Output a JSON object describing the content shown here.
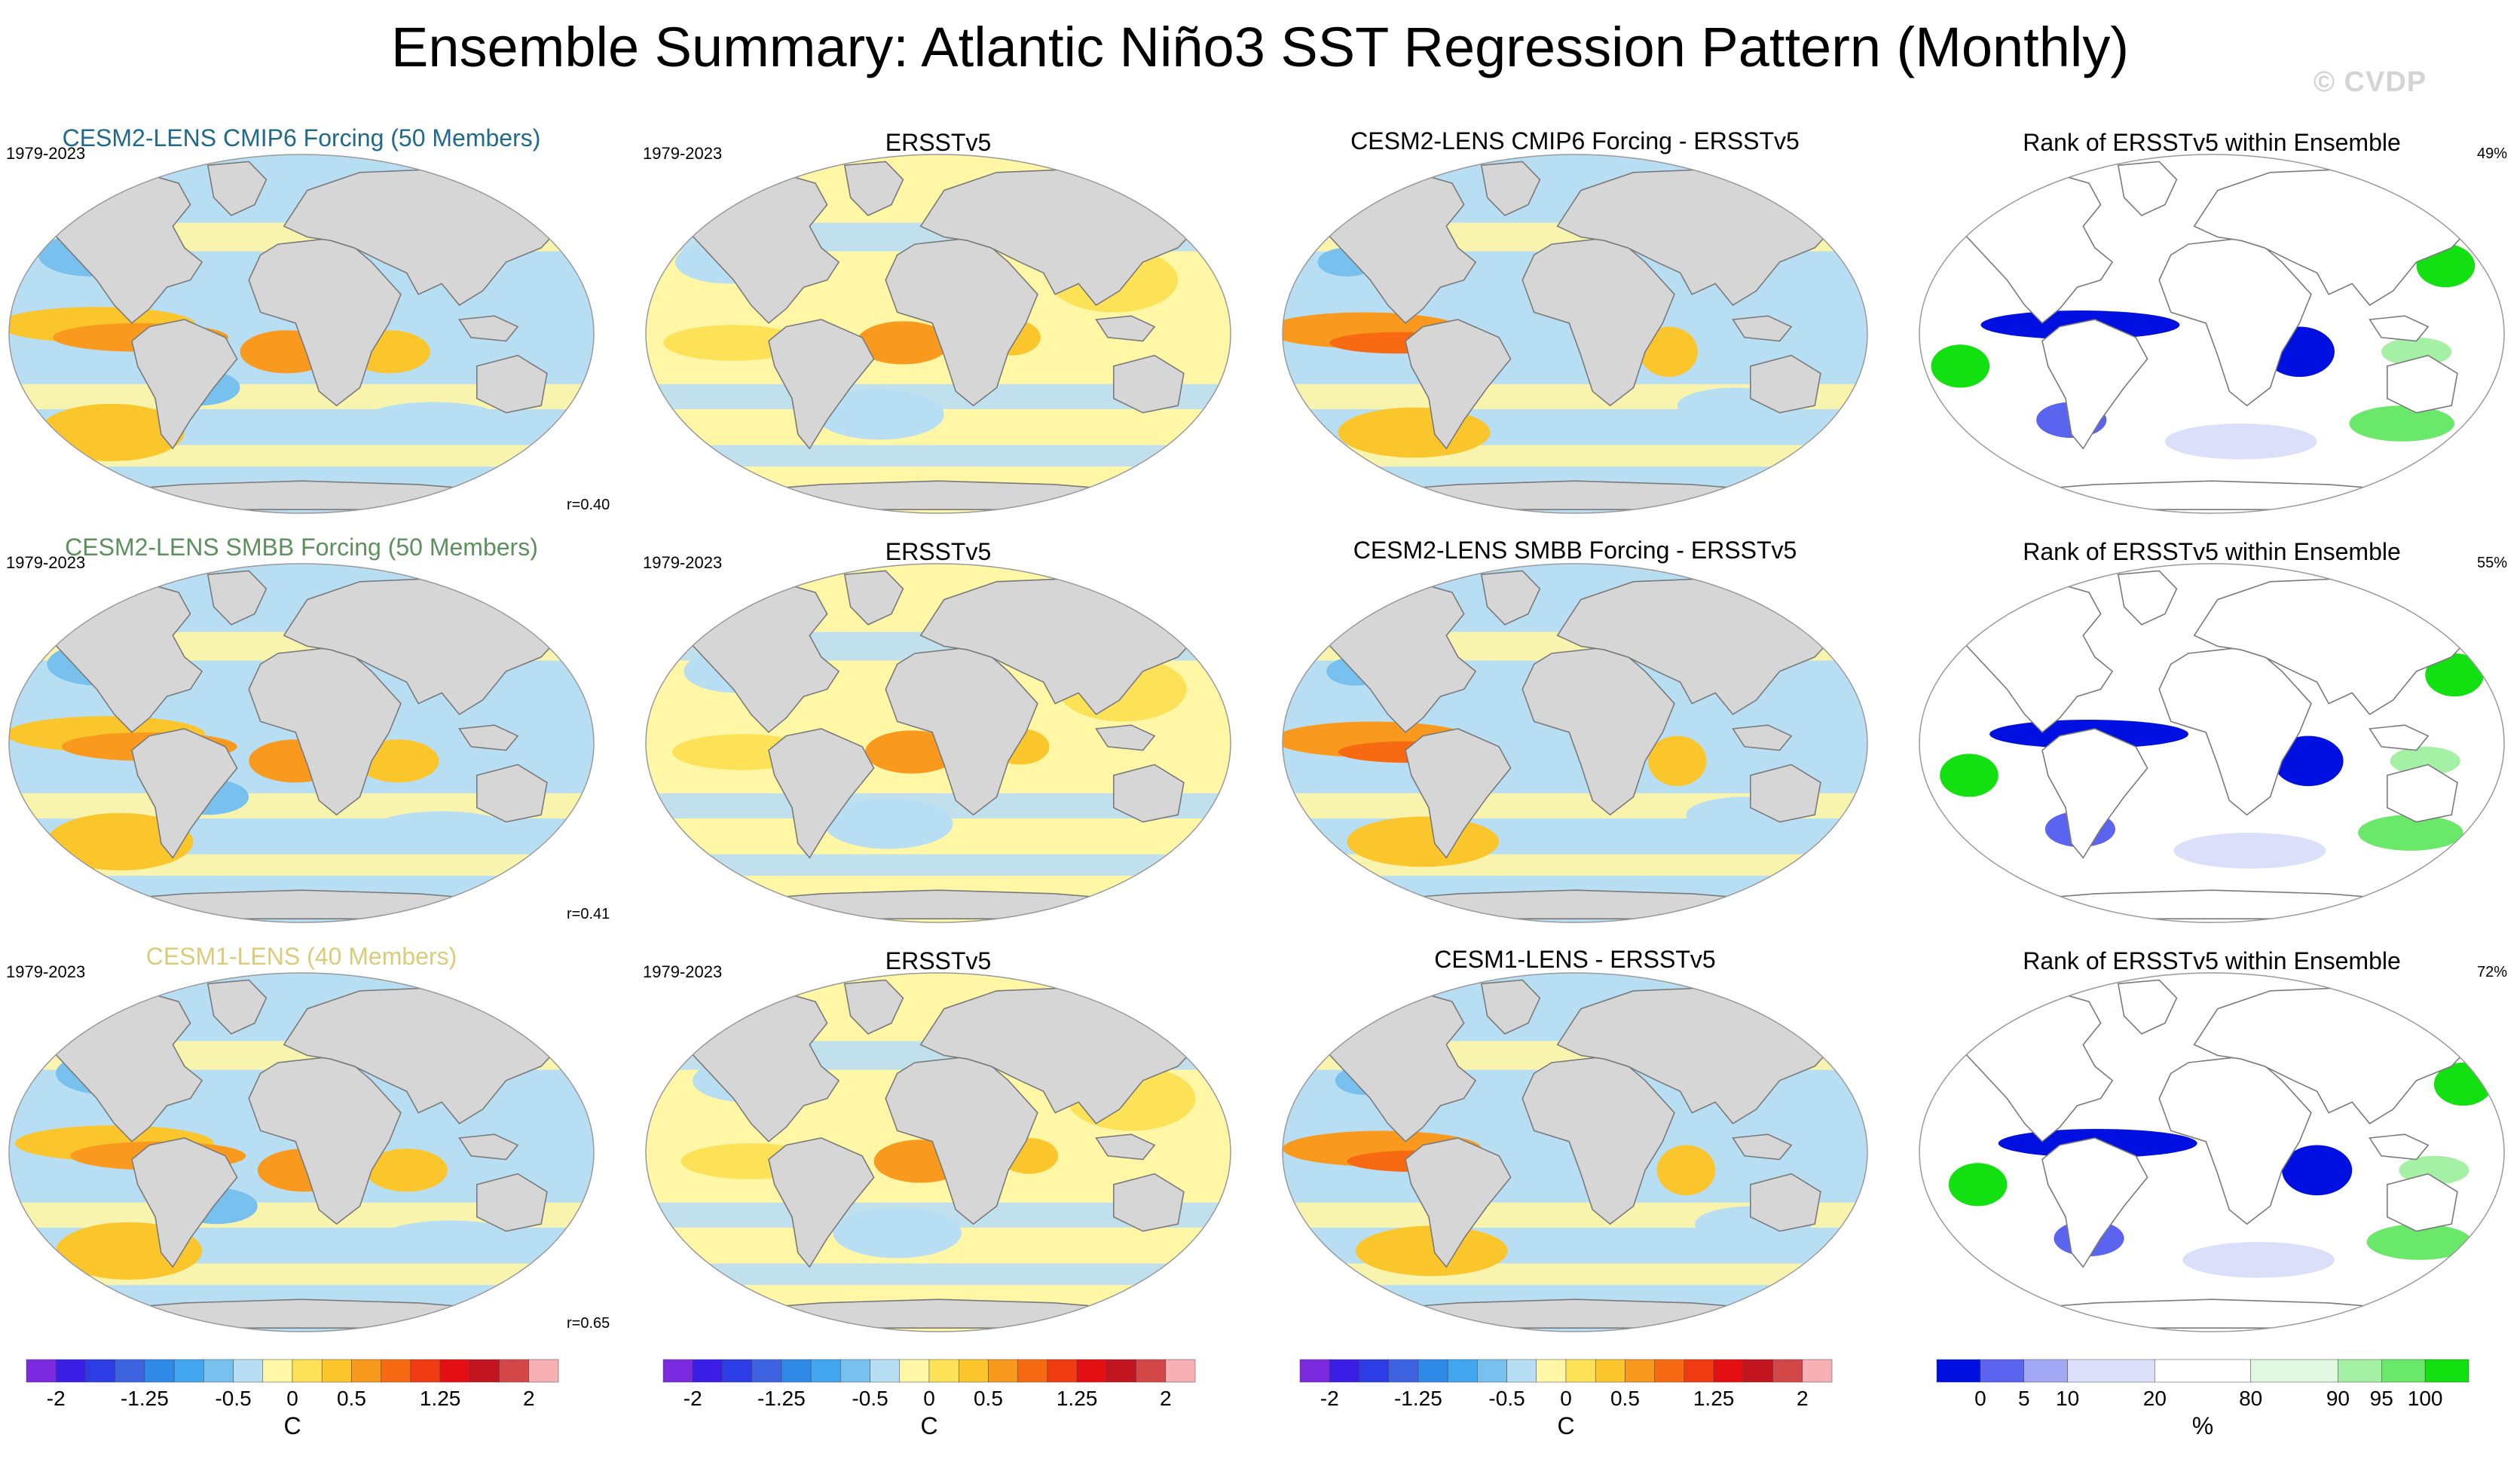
{
  "title": "Ensemble Summary: Atlantic Niño3 SST Regression Pattern (Monthly)",
  "watermark": "© CVDP",
  "colors": {
    "land": "#d6d6d6",
    "coastline": "#7a7a7a",
    "title_row1": "#216a8a",
    "title_row2": "#5e8f5e",
    "title_row3": "#d9cc7a",
    "sst_palette": [
      "#7b2ae0",
      "#3a1ee6",
      "#2d3de6",
      "#3e63e0",
      "#2e8ae6",
      "#42a6ee",
      "#78c0ee",
      "#b8def4",
      "#fff6a6",
      "#fde258",
      "#fbc52c",
      "#f99a1e",
      "#f76a12",
      "#f13b12",
      "#e30f13",
      "#c21321",
      "#d44749",
      "#f7b0b4"
    ],
    "rank_palette": [
      "#0010e0",
      "#5a64ee",
      "#a2a8f4",
      "#dcdffa",
      "#ffffff",
      "#dff8df",
      "#a4f0a4",
      "#6ae86a",
      "#12e010"
    ]
  },
  "rows": [
    {
      "model_title": "CESM2-LENS CMIP6 Forcing (50 Members)",
      "period": "1979-2023",
      "correlation": "r=0.40",
      "obs_title": "ERSSTv5",
      "obs_period": "1979-2023",
      "diff_title": "CESM2-LENS CMIP6 Forcing - ERSSTv5",
      "rank_title": "Rank of ERSSTv5 within Ensemble",
      "rank_pct": "49%"
    },
    {
      "model_title": "CESM2-LENS SMBB Forcing (50 Members)",
      "period": "1979-2023",
      "correlation": "r=0.41",
      "obs_title": "ERSSTv5",
      "obs_period": "1979-2023",
      "diff_title": "CESM2-LENS SMBB Forcing - ERSSTv5",
      "rank_title": "Rank of ERSSTv5 within Ensemble",
      "rank_pct": "55%"
    },
    {
      "model_title": "CESM1-LENS (40 Members)",
      "period": "1979-2023",
      "correlation": "r=0.65",
      "obs_title": "ERSSTv5",
      "obs_period": "1979-2023",
      "diff_title": "CESM1-LENS - ERSSTv5",
      "rank_title": "Rank of ERSSTv5 within Ensemble",
      "rank_pct": "72%"
    }
  ],
  "colorbars": [
    {
      "ticks": [
        "-2",
        "-1.25",
        "-0.5",
        "0",
        "0.5",
        "1.25",
        "2"
      ],
      "units": "C"
    },
    {
      "ticks": [
        "-2",
        "-1.25",
        "-0.5",
        "0",
        "0.5",
        "1.25",
        "2"
      ],
      "units": "C"
    },
    {
      "ticks": [
        "-2",
        "-1.25",
        "-0.5",
        "0",
        "0.5",
        "1.25",
        "2"
      ],
      "units": "C"
    },
    {
      "ticks": [
        "0",
        "5",
        "10",
        "20",
        "80",
        "90",
        "95",
        "100"
      ],
      "units": "%"
    }
  ]
}
